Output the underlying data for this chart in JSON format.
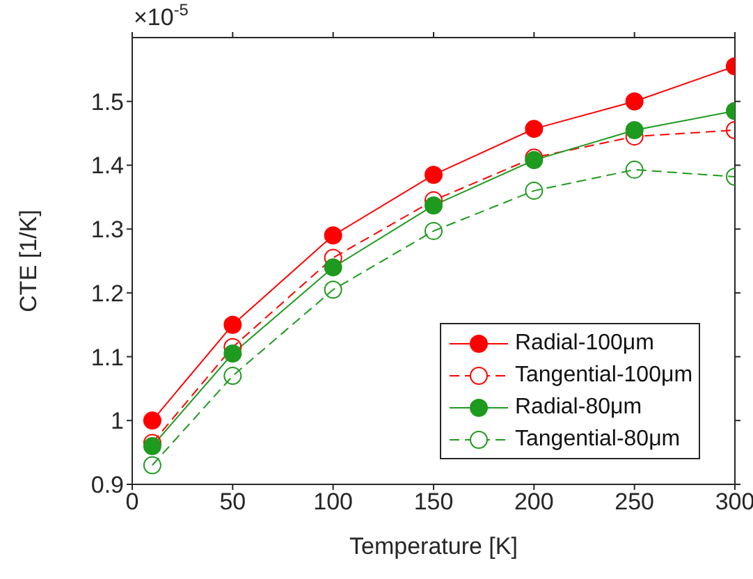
{
  "chart_data": {
    "type": "line",
    "xlabel": "Temperature [K]",
    "ylabel": "CTE [1/K]",
    "annotations": [
      "×10$^{-5}$"
    ],
    "x": [
      10,
      50,
      100,
      150,
      200,
      250,
      300
    ],
    "series": [
      {
        "name": "Radial-100μm",
        "color": "#ff0000",
        "line_style": "solid",
        "values": [
          1.0,
          1.15,
          1.29,
          1.385,
          1.457,
          1.5,
          1.555
        ]
      },
      {
        "name": "Tangential-100μm",
        "color": "#ff0000",
        "line_style": "dashed",
        "values": [
          0.965,
          1.115,
          1.255,
          1.345,
          1.412,
          1.445,
          1.455
        ]
      },
      {
        "name": "Radial-80μm",
        "color": "#1e9a1e",
        "line_style": "solid",
        "values": [
          0.96,
          1.105,
          1.24,
          1.337,
          1.408,
          1.455,
          1.485
        ]
      },
      {
        "name": "Tangential-80μm",
        "color": "#1e9a1e",
        "line_style": "dashed",
        "values": [
          0.93,
          1.07,
          1.205,
          1.297,
          1.36,
          1.393,
          1.382
        ]
      }
    ],
    "xlim": [
      0,
      300
    ],
    "xticks": [
      0,
      50,
      100,
      150,
      200,
      250,
      300
    ],
    "ylim": [
      0.9,
      1.6
    ],
    "yticks": [
      0.9,
      1,
      1.1,
      1.2,
      1.3,
      1.4,
      1.5
    ],
    "marker": "circle",
    "grid": false,
    "legend": "right"
  }
}
